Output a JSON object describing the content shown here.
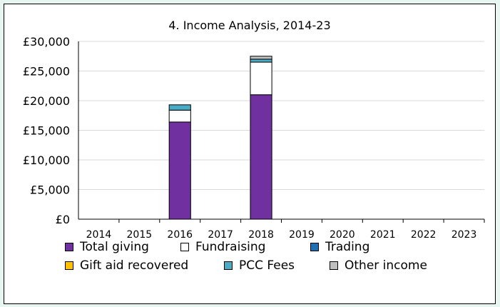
{
  "chart_data": {
    "type": "bar",
    "stacked": true,
    "title": "4. Income Analysis, 2014-23",
    "xlabel": "",
    "ylabel": "",
    "categories": [
      "2014",
      "2015",
      "2016",
      "2017",
      "2018",
      "2019",
      "2020",
      "2021",
      "2022",
      "2023"
    ],
    "ylim": [
      0,
      30000
    ],
    "yticks": [
      {
        "value": 0,
        "label": "£0"
      },
      {
        "value": 5000,
        "label": "£5,000"
      },
      {
        "value": 10000,
        "label": "£10,000"
      },
      {
        "value": 15000,
        "label": "£15,000"
      },
      {
        "value": 20000,
        "label": "£20,000"
      },
      {
        "value": 25000,
        "label": "£25,000"
      },
      {
        "value": 30000,
        "label": "£30,000"
      }
    ],
    "grid": true,
    "legend_position": "bottom",
    "series": [
      {
        "name": "Total giving",
        "color": "#7030a0",
        "values": [
          0,
          0,
          16400,
          0,
          21000,
          0,
          0,
          0,
          0,
          0
        ]
      },
      {
        "name": "Fundraising",
        "color": "#ffffff",
        "values": [
          0,
          0,
          2000,
          0,
          5500,
          0,
          0,
          0,
          0,
          0
        ]
      },
      {
        "name": "Trading",
        "color": "#1f6fb5",
        "values": [
          0,
          0,
          0,
          0,
          0,
          0,
          0,
          0,
          0,
          0
        ]
      },
      {
        "name": "Gift aid recovered",
        "color": "#ffc000",
        "values": [
          0,
          0,
          0,
          0,
          0,
          0,
          0,
          0,
          0,
          0
        ]
      },
      {
        "name": "PCC Fees",
        "color": "#4bacc6",
        "values": [
          0,
          0,
          900,
          0,
          500,
          0,
          0,
          0,
          0,
          0
        ]
      },
      {
        "name": "Other income",
        "color": "#bfbfbf",
        "values": [
          0,
          0,
          0,
          0,
          500,
          0,
          0,
          0,
          0,
          0
        ]
      }
    ]
  }
}
